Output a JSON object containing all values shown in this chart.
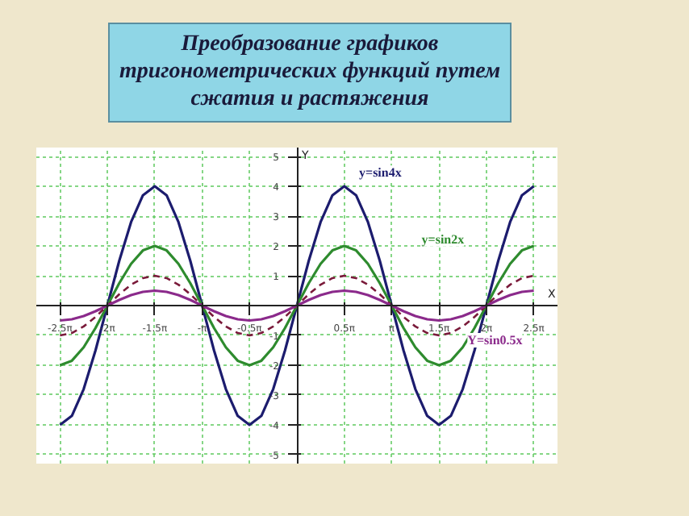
{
  "chart_data": {
    "type": "line",
    "title": "Преобразование графиков тригонометрических функций путем сжатия и растяжения",
    "xlabel": "X",
    "ylabel": "Y",
    "x": [
      -7.854,
      -7.461,
      -7.069,
      -6.676,
      -6.283,
      -5.89,
      -5.498,
      -5.105,
      -4.712,
      -4.32,
      -3.927,
      -3.534,
      -3.142,
      -2.749,
      -2.356,
      -1.963,
      -1.571,
      -1.178,
      -0.785,
      -0.393,
      0,
      0.393,
      0.785,
      1.178,
      1.571,
      1.963,
      2.356,
      2.749,
      3.142,
      3.534,
      3.927,
      4.32,
      4.712,
      5.105,
      5.498,
      5.89,
      6.283,
      6.676,
      7.069,
      7.461,
      7.854
    ],
    "series": [
      {
        "name": "y=sin4x",
        "color": "#1c1c6e",
        "line_style": "solid",
        "values": [
          -4,
          -3.7,
          -2.8,
          -1.5,
          0,
          1.5,
          2.8,
          3.7,
          4,
          3.7,
          2.8,
          1.5,
          0,
          -1.5,
          -2.8,
          -3.7,
          -4,
          -3.7,
          -2.8,
          -1.5,
          0,
          1.5,
          2.8,
          3.7,
          4,
          3.7,
          2.8,
          1.5,
          0,
          -1.5,
          -2.8,
          -3.7,
          -4,
          -3.7,
          -2.8,
          -1.5,
          0,
          1.5,
          2.8,
          3.7,
          4
        ]
      },
      {
        "name": "y=sin2x",
        "color": "#2e8b2e",
        "line_style": "solid",
        "values": [
          -2,
          -1.85,
          -1.4,
          -0.75,
          0,
          0.75,
          1.4,
          1.85,
          2,
          1.85,
          1.4,
          0.75,
          0,
          -0.75,
          -1.4,
          -1.85,
          -2,
          -1.85,
          -1.4,
          -0.75,
          0,
          0.75,
          1.4,
          1.85,
          2,
          1.85,
          1.4,
          0.75,
          0,
          -0.75,
          -1.4,
          -1.85,
          -2,
          -1.85,
          -1.4,
          -0.75,
          0,
          0.75,
          1.4,
          1.85,
          2
        ]
      },
      {
        "color": "#7a1a3a",
        "line_style": "dashed",
        "values": [
          -1,
          -0.92,
          -0.7,
          -0.38,
          0,
          0.38,
          0.7,
          0.92,
          1,
          0.92,
          0.7,
          0.38,
          0,
          -0.38,
          -0.7,
          -0.92,
          -1,
          -0.92,
          -0.7,
          -0.38,
          0,
          0.38,
          0.7,
          0.92,
          1,
          0.92,
          0.7,
          0.38,
          0,
          -0.38,
          -0.7,
          -0.92,
          -1,
          -0.92,
          -0.7,
          -0.38,
          0,
          0.38,
          0.7,
          0.92,
          1
        ]
      },
      {
        "name": "Y=sin0.5x",
        "color": "#8b2a8b",
        "line_style": "solid",
        "values": [
          -0.5,
          -0.46,
          -0.35,
          -0.19,
          0,
          0.19,
          0.35,
          0.46,
          0.5,
          0.46,
          0.35,
          0.19,
          0,
          -0.19,
          -0.35,
          -0.46,
          -0.5,
          -0.46,
          -0.35,
          -0.19,
          0,
          0.19,
          0.35,
          0.46,
          0.5,
          0.46,
          0.35,
          0.19,
          0,
          -0.19,
          -0.35,
          -0.46,
          -0.5,
          -0.46,
          -0.35,
          -0.19,
          0,
          0.19,
          0.35,
          0.46,
          0.5
        ]
      }
    ],
    "xlim": [
      -8.64,
      8.64
    ],
    "ylim": [
      -5.3,
      5.3
    ],
    "xticks": [
      {
        "value": -7.854,
        "label": "-2.5π"
      },
      {
        "value": -6.283,
        "label": "-2π"
      },
      {
        "value": -4.712,
        "label": "-1.5π"
      },
      {
        "value": -3.142,
        "label": "-π"
      },
      {
        "value": -1.571,
        "label": "-0.5π"
      },
      {
        "value": 0,
        "label": null
      },
      {
        "value": 1.571,
        "label": "0.5π"
      },
      {
        "value": 3.142,
        "label": "π"
      },
      {
        "value": 4.712,
        "label": "1.5π"
      },
      {
        "value": 6.283,
        "label": "2π"
      },
      {
        "value": 7.854,
        "label": "2.5π"
      }
    ],
    "yticks": [
      -5,
      -4,
      -3,
      -2,
      -1,
      {
        "value": 0,
        "label": null
      },
      1,
      2,
      3,
      4,
      5
    ],
    "grid": true
  }
}
